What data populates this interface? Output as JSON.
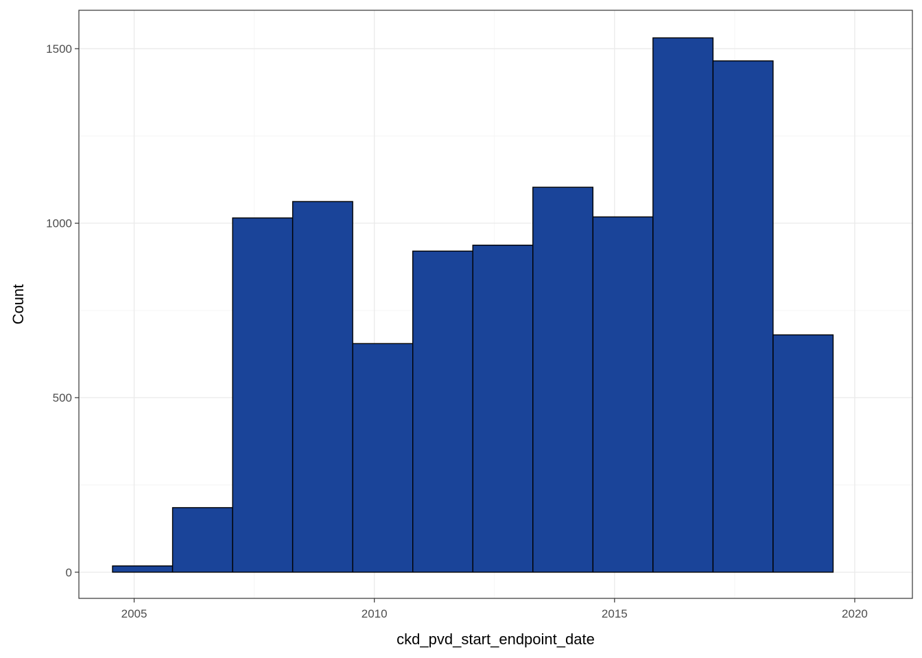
{
  "chart_data": {
    "type": "bar",
    "title": "",
    "xlabel": "ckd_pvd_start_endpoint_date",
    "ylabel": "Count",
    "x_ticks": [
      "2005",
      "2010",
      "2015",
      "2020"
    ],
    "y_ticks": [
      "0",
      "500",
      "1000",
      "1500"
    ],
    "xlim": [
      2003.85,
      2021.2
    ],
    "ylim": [
      -75,
      1610
    ],
    "grid": true,
    "fill_color": "#1a4499",
    "bins": [
      {
        "start": 2004.55,
        "end": 2005.8,
        "count": 18
      },
      {
        "start": 2005.8,
        "end": 2007.05,
        "count": 185
      },
      {
        "start": 2007.05,
        "end": 2008.3,
        "count": 1015
      },
      {
        "start": 2008.3,
        "end": 2009.55,
        "count": 1062
      },
      {
        "start": 2009.55,
        "end": 2010.8,
        "count": 655
      },
      {
        "start": 2010.8,
        "end": 2012.05,
        "count": 920
      },
      {
        "start": 2012.05,
        "end": 2013.3,
        "count": 937
      },
      {
        "start": 2013.3,
        "end": 2014.55,
        "count": 1103
      },
      {
        "start": 2014.55,
        "end": 2015.8,
        "count": 1018
      },
      {
        "start": 2015.8,
        "end": 2017.05,
        "count": 1531
      },
      {
        "start": 2017.05,
        "end": 2018.3,
        "count": 1465
      },
      {
        "start": 2018.3,
        "end": 2019.55,
        "count": 680
      }
    ]
  }
}
